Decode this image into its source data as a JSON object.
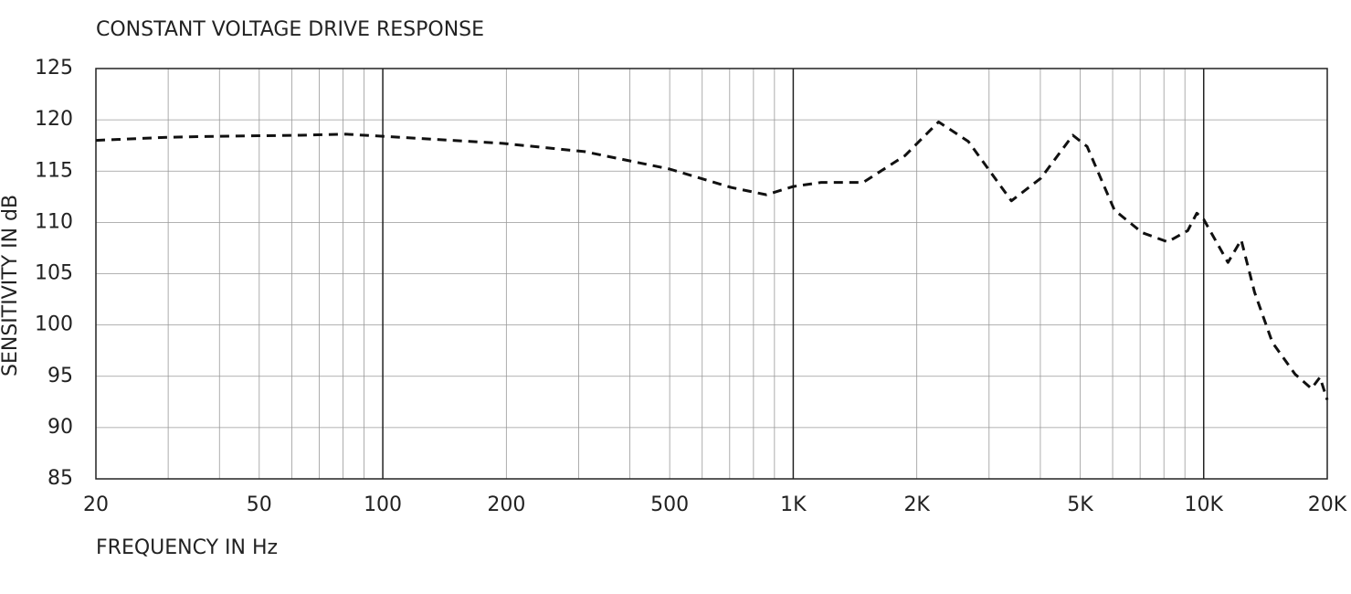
{
  "chart_data": {
    "type": "line",
    "title": "CONSTANT VOLTAGE DRIVE RESPONSE",
    "x_label": "FREQUENCY IN Hz",
    "y_label": "SENSITIVITY IN dB",
    "x_scale": "log",
    "xlim": [
      20,
      20000
    ],
    "ylim": [
      85,
      125
    ],
    "xticks": [
      20,
      50,
      100,
      200,
      500,
      {
        "value": 1000,
        "label": "1K"
      },
      {
        "value": 2000,
        "label": "2K"
      },
      {
        "value": 5000,
        "label": "5K"
      },
      {
        "value": 10000,
        "label": "10K"
      },
      {
        "value": 20000,
        "label": "20K"
      }
    ],
    "x_minor_grid": [
      30,
      40,
      60,
      70,
      80,
      90,
      300,
      400,
      600,
      700,
      800,
      900,
      3000,
      4000,
      6000,
      7000,
      8000,
      9000
    ],
    "yticks": [
      85,
      90,
      95,
      100,
      105,
      110,
      115,
      120,
      125
    ],
    "grid": true,
    "series": [
      {
        "color": "#111111",
        "dash": true,
        "x": [
          20,
          30,
          40,
          63,
          81,
          100,
          196,
          310,
          500,
          707,
          860,
          1000,
          1170,
          1480,
          1870,
          2260,
          2670,
          3400,
          4010,
          4800,
          5200,
          6060,
          7080,
          8170,
          9140,
          9620,
          10000,
          11460,
          12340,
          13300,
          14700,
          16700,
          18300,
          19200,
          20000
        ],
        "values": [
          118.0,
          118.3,
          118.4,
          118.5,
          118.6,
          118.4,
          117.7,
          116.9,
          115.2,
          113.4,
          112.7,
          113.5,
          113.9,
          113.9,
          116.5,
          119.8,
          117.9,
          112.1,
          114.3,
          118.5,
          117.4,
          111.2,
          109.0,
          108.1,
          109.2,
          110.9,
          110.3,
          106.1,
          108.3,
          103.2,
          98.3,
          95.2,
          93.8,
          94.9,
          92.7
        ]
      }
    ]
  }
}
